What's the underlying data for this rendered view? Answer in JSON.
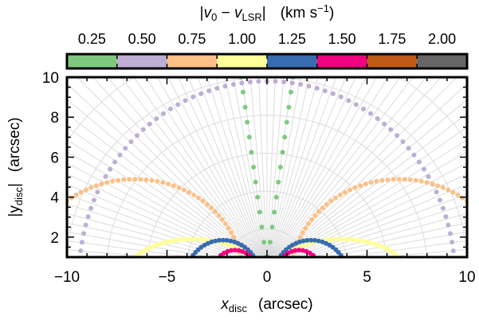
{
  "colorbar": {
    "title_prefix": "|",
    "title_v0": "v",
    "title_v0_sub": "0",
    "title_minus": " − ",
    "title_vlsr": "v",
    "title_vlsr_sub": "LSR",
    "title_suffix": "|",
    "title_units": "(km s",
    "title_units_sup": "−1",
    "title_units_end": ")",
    "tick_labels": [
      "0.25",
      "0.50",
      "0.75",
      "1.00",
      "1.25",
      "1.50",
      "1.75",
      "2.00"
    ],
    "colors": [
      "#7fc97f",
      "#beaed4",
      "#fdc086",
      "#ffff99",
      "#386cb0",
      "#f0027f",
      "#bf5b17",
      "#666666"
    ]
  },
  "chart_data": {
    "type": "scatter",
    "xlabel_main": "x",
    "xlabel_sub": "disc",
    "xlabel_units": "(arcsec)",
    "ylabel_prefix": "|y",
    "ylabel_sub": "disc",
    "ylabel_suffix": "|",
    "ylabel_units": "(arcsec)",
    "xlim": [
      -10,
      10
    ],
    "ylim": [
      1,
      10
    ],
    "x_ticks": [
      -10,
      -5,
      0,
      5,
      10
    ],
    "x_tick_labels": [
      "−10",
      "−5",
      "0",
      "5",
      "10"
    ],
    "y_ticks": [
      2,
      4,
      6,
      8,
      10
    ],
    "y_tick_labels": [
      "2",
      "4",
      "6",
      "8",
      "10"
    ],
    "grid": "polar-elliptical grey",
    "series": [
      {
        "velocity": 0.25,
        "color": "#7fc97f",
        "shape": "line",
        "x_at_ymax": 1.3,
        "x_at_ymin": 0.05,
        "points": 13
      },
      {
        "velocity": 0.5,
        "color": "#beaed4",
        "shape": "arc",
        "cx": 0.0,
        "a": 9.4,
        "b": 9.8,
        "points": 70
      },
      {
        "velocity": 0.75,
        "color": "#fdc086",
        "shape": "arc",
        "cx": 6.6,
        "a": 5.4,
        "b": 4.9,
        "points": 60
      },
      {
        "velocity": 1.0,
        "color": "#ffff99",
        "shape": "arc",
        "cx": 3.7,
        "a": 3.4,
        "b": 1.9,
        "points": 50
      },
      {
        "velocity": 1.25,
        "color": "#386cb0",
        "shape": "arc",
        "cx": 2.2,
        "a": 1.85,
        "b": 1.85,
        "points": 30
      },
      {
        "velocity": 1.5,
        "color": "#f0027f",
        "shape": "arc",
        "cx": 1.6,
        "a": 1.2,
        "b": 1.35,
        "points": 20
      }
    ]
  }
}
